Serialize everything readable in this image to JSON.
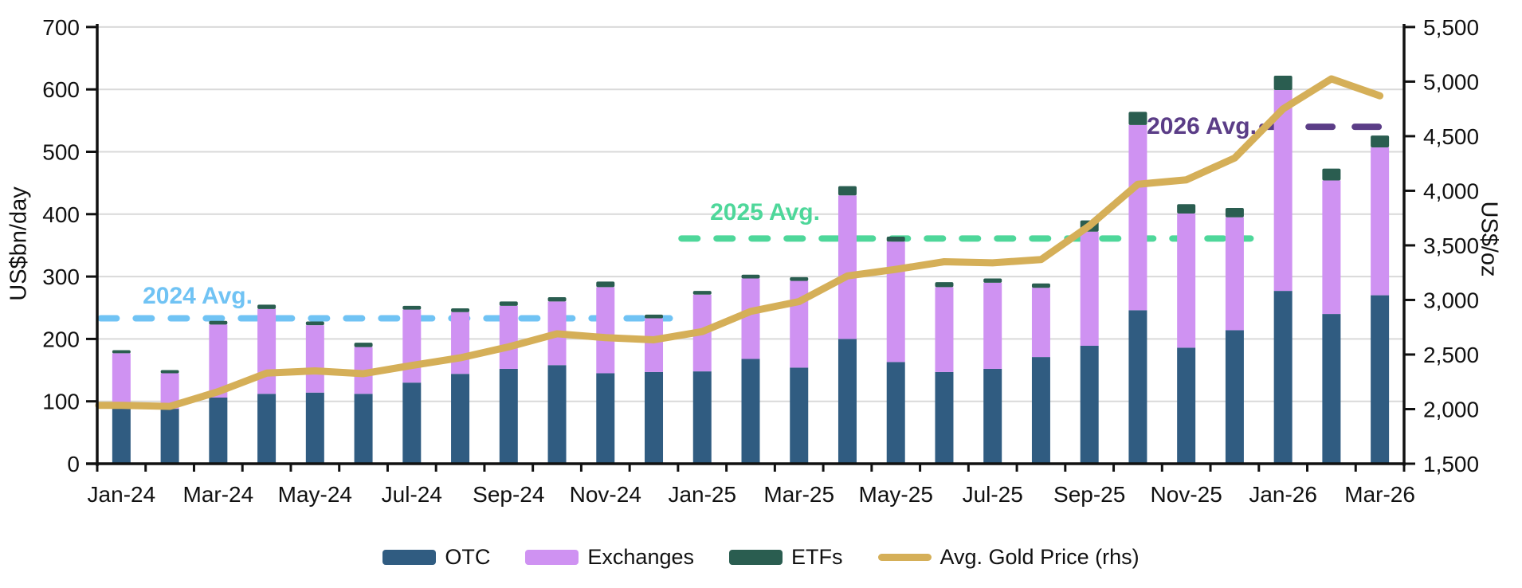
{
  "chart_data": {
    "type": "bar+line",
    "title": "",
    "categories": [
      "Jan-24",
      "Feb-24",
      "Mar-24",
      "Apr-24",
      "May-24",
      "Jun-24",
      "Jul-24",
      "Aug-24",
      "Sep-24",
      "Oct-24",
      "Nov-24",
      "Dec-24",
      "Jan-25",
      "Feb-25",
      "Mar-25",
      "Apr-25",
      "May-25",
      "Jun-25",
      "Jul-25",
      "Aug-25",
      "Sep-25",
      "Oct-25",
      "Nov-25",
      "Dec-25",
      "Jan-26",
      "Feb-26",
      "Mar-26"
    ],
    "bar_series": [
      {
        "name": "OTC",
        "color": "#305C81",
        "values": [
          92,
          88,
          106,
          112,
          114,
          112,
          130,
          144,
          152,
          158,
          145,
          147,
          148,
          168,
          154,
          200,
          163,
          147,
          152,
          171,
          189,
          246,
          186,
          214,
          277,
          240,
          270
        ]
      },
      {
        "name": "Exchanges",
        "color": "#CF92F2",
        "values": [
          85,
          57,
          117,
          136,
          108,
          75,
          117,
          99,
          101,
          102,
          138,
          86,
          123,
          129,
          139,
          230,
          193,
          136,
          138,
          111,
          183,
          297,
          215,
          181,
          322,
          214,
          237
        ]
      },
      {
        "name": "ETFs",
        "color": "#2A5D50",
        "values": [
          5,
          5,
          6,
          7,
          6,
          7,
          6,
          6,
          7,
          7,
          9,
          6,
          6,
          6,
          6,
          15,
          8,
          8,
          7,
          7,
          18,
          21,
          15,
          15,
          23,
          19,
          19
        ]
      }
    ],
    "line_series": {
      "name": "Avg. Gold Price (rhs)",
      "color": "#D5AF58",
      "axis": "right",
      "values": [
        2035,
        2025,
        2160,
        2330,
        2350,
        2325,
        2400,
        2470,
        2570,
        2690,
        2655,
        2635,
        2710,
        2895,
        2985,
        3220,
        3280,
        3350,
        3340,
        3370,
        3680,
        4060,
        4100,
        4300,
        4750,
        5025,
        4870
      ]
    },
    "avg_lines": [
      {
        "label": "2024 Avg.",
        "value": 233,
        "color": "#70C3F4",
        "span": [
          "Jan-24",
          "Dec-24"
        ]
      },
      {
        "label": "2025 Avg.",
        "value": 361,
        "color": "#4ED79A",
        "span": [
          "Jan-25",
          "Dec-25"
        ]
      },
      {
        "label": "2026 Avg.",
        "value": 540,
        "color": "#5B3D87",
        "span": [
          "Jan-26",
          "Mar-26"
        ]
      }
    ],
    "left_axis": {
      "title": "US$bn/day",
      "min": 0,
      "max": 700,
      "tick_step": 100,
      "tick_labels": [
        "0",
        "100",
        "200",
        "300",
        "400",
        "500",
        "600",
        "700"
      ]
    },
    "right_axis": {
      "title": "US$/oz",
      "min": 1500,
      "max": 5500,
      "tick_step": 500,
      "tick_labels": [
        "1,500",
        "2,000",
        "2,500",
        "3,000",
        "3,500",
        "4,000",
        "4,500",
        "5,000",
        "5,500"
      ]
    },
    "x_axis": {
      "labeled_ticks": [
        "Jan-24",
        "Mar-24",
        "May-24",
        "Jul-24",
        "Sep-24",
        "Nov-24",
        "Jan-25",
        "Mar-25",
        "May-25",
        "Jul-25",
        "Sep-25",
        "Nov-25",
        "Jan-26",
        "Mar-26"
      ]
    },
    "legend": [
      "OTC",
      "Exchanges",
      "ETFs",
      "Avg. Gold Price (rhs)"
    ],
    "grid": "horizontal",
    "legend_position": "bottom-center"
  }
}
